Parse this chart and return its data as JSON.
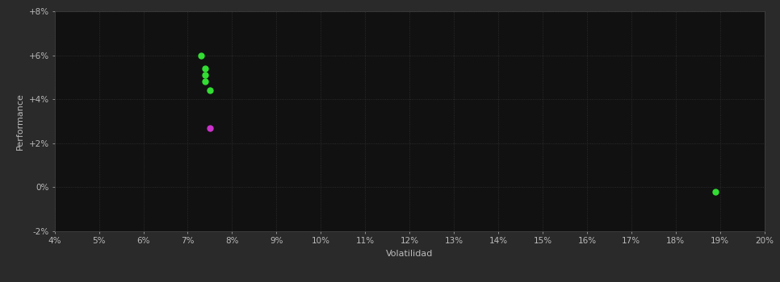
{
  "background_color": "#2a2a2a",
  "plot_bg_color": "#111111",
  "grid_color": "#333333",
  "text_color": "#bbbbbb",
  "xlabel": "Volatilidad",
  "ylabel": "Performance",
  "xlim": [
    0.04,
    0.2
  ],
  "ylim": [
    -0.02,
    0.08
  ],
  "xticks": [
    0.04,
    0.05,
    0.06,
    0.07,
    0.08,
    0.09,
    0.1,
    0.11,
    0.12,
    0.13,
    0.14,
    0.15,
    0.16,
    0.17,
    0.18,
    0.19,
    0.2
  ],
  "yticks": [
    -0.02,
    0.0,
    0.02,
    0.04,
    0.06,
    0.08
  ],
  "green_points": [
    [
      0.073,
      0.06
    ],
    [
      0.074,
      0.054
    ],
    [
      0.074,
      0.051
    ],
    [
      0.074,
      0.048
    ],
    [
      0.075,
      0.044
    ],
    [
      0.189,
      -0.002
    ]
  ],
  "magenta_points": [
    [
      0.075,
      0.027
    ]
  ],
  "green_color": "#33dd33",
  "magenta_color": "#cc33cc",
  "point_size": 25,
  "fontsize_labels": 8,
  "fontsize_ticks": 7.5
}
